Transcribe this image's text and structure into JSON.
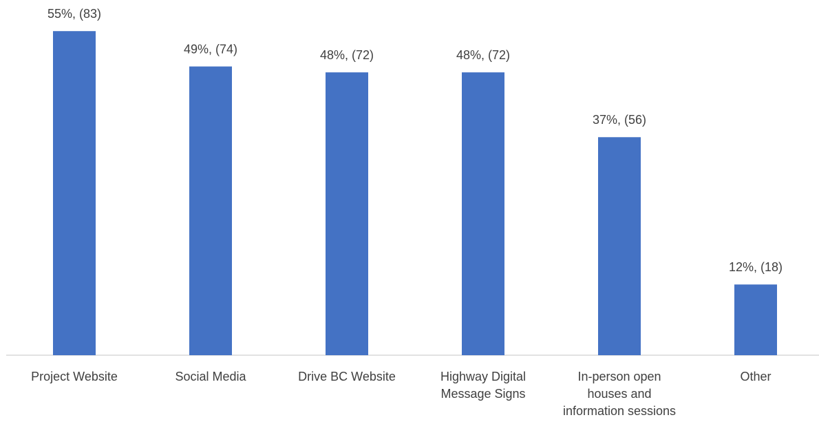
{
  "chart_data": {
    "type": "bar",
    "categories": [
      "Project Website",
      "Social Media",
      "Drive BC Website",
      "Highway Digital Message Signs",
      "In-person open houses and information sessions",
      "Other"
    ],
    "values": [
      55,
      49,
      48,
      48,
      37,
      12
    ],
    "value_labels": [
      "55%, (83)",
      "49%, (74)",
      "48%, (72)",
      "48%, (72)",
      "37%, (56)",
      "12%, (18)"
    ],
    "color": "#4472c4"
  }
}
